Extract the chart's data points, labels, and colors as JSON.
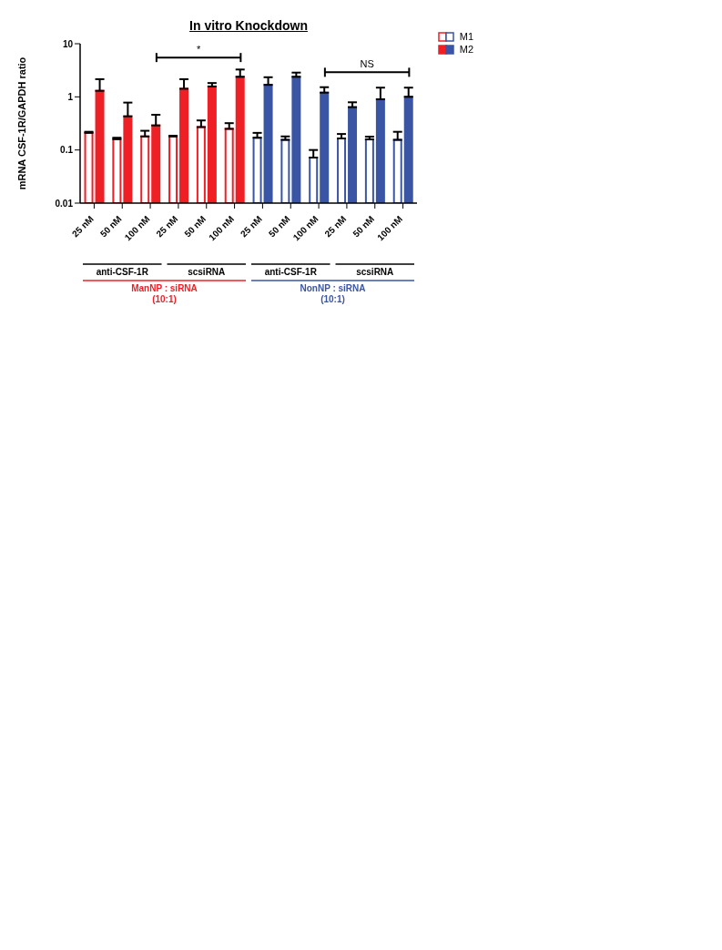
{
  "chart_data": {
    "type": "bar",
    "title": "In vitro Knockdown",
    "ylabel": "mRNA CSF-1R/GAPDH ratio",
    "categories": [
      "25 nM",
      "50 nM",
      "100 nM",
      "25 nM",
      "50 nM",
      "100 nM",
      "25 nM",
      "50 nM",
      "100 nM",
      "25 nM",
      "50 nM",
      "100 nM"
    ],
    "series": [
      {
        "name": "M1",
        "colors": [
          "#ffffff",
          "#ffffff",
          "#ffffff",
          "#ffffff",
          "#ffffff",
          "#ffffff",
          "#ffffff",
          "#ffffff",
          "#ffffff",
          "#ffffff",
          "#ffffff",
          "#ffffff"
        ],
        "values": [
          0.21,
          0.16,
          0.18,
          0.18,
          0.27,
          0.25,
          0.17,
          0.155,
          0.072,
          0.165,
          0.158,
          0.155
        ],
        "errors": [
          [
            0.21,
            0.22
          ],
          [
            0.16,
            0.17
          ],
          [
            0.18,
            0.23
          ],
          [
            0.18,
            0.185
          ],
          [
            0.27,
            0.36
          ],
          [
            0.25,
            0.32
          ],
          [
            0.17,
            0.21
          ],
          [
            0.155,
            0.18
          ],
          [
            0.072,
            0.1
          ],
          [
            0.165,
            0.2
          ],
          [
            0.158,
            0.178
          ],
          [
            0.155,
            0.22
          ]
        ]
      },
      {
        "name": "M2",
        "colors": [
          "#ee2026",
          "#ee2026",
          "#ee2026",
          "#ee2026",
          "#ee2026",
          "#ee2026",
          "#3a55a4",
          "#3a55a4",
          "#3a55a4",
          "#3a55a4",
          "#3a55a4",
          "#3a55a4"
        ],
        "values": [
          1.3,
          0.43,
          0.29,
          1.42,
          1.57,
          2.38,
          1.68,
          2.38,
          1.2,
          0.64,
          0.9,
          1.0
        ],
        "errors": [
          [
            1.3,
            2.15
          ],
          [
            0.43,
            0.78
          ],
          [
            0.29,
            0.46
          ],
          [
            1.42,
            2.15
          ],
          [
            1.57,
            1.82
          ],
          [
            2.38,
            3.27
          ],
          [
            1.68,
            2.34
          ],
          [
            2.38,
            2.86
          ],
          [
            1.2,
            1.52
          ],
          [
            0.64,
            0.79
          ],
          [
            0.9,
            1.49
          ],
          [
            1.0,
            1.49
          ]
        ]
      }
    ],
    "ylim": [
      0.01,
      10
    ],
    "yticks": [
      0.01,
      0.1,
      1,
      10
    ],
    "log": "y",
    "grid": false,
    "legend": "top right",
    "annotations": [
      "*",
      "NS",
      "anti-CSF-1R",
      "scsiRNA",
      "anti-CSF-1R",
      "scsiRNA",
      "ManNP : siRNA\n(10:1)",
      "NonNP : siRNA\n(10:1)"
    ]
  }
}
